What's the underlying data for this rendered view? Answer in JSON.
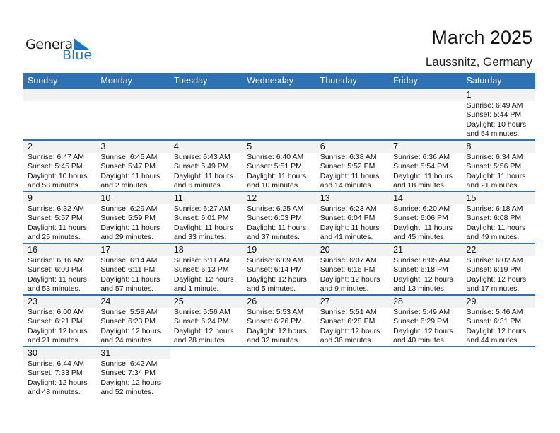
{
  "logo": {
    "general": "General",
    "blue": "Blue"
  },
  "title": "March 2025",
  "location": "Laussnitz, Germany",
  "colors": {
    "header": "#2e72b4",
    "logo_blue": "#1d74bd",
    "day_strip": "#f2f2f2"
  },
  "weekdays": [
    "Sunday",
    "Monday",
    "Tuesday",
    "Wednesday",
    "Thursday",
    "Friday",
    "Saturday"
  ],
  "weeks": [
    [
      null,
      null,
      null,
      null,
      null,
      null,
      {
        "day": "1",
        "sunrise": "Sunrise: 6:49 AM",
        "sunset": "Sunset: 5:44 PM",
        "daylight1": "Daylight: 10 hours",
        "daylight2": "and 54 minutes."
      }
    ],
    [
      {
        "day": "2",
        "sunrise": "Sunrise: 6:47 AM",
        "sunset": "Sunset: 5:45 PM",
        "daylight1": "Daylight: 10 hours",
        "daylight2": "and 58 minutes."
      },
      {
        "day": "3",
        "sunrise": "Sunrise: 6:45 AM",
        "sunset": "Sunset: 5:47 PM",
        "daylight1": "Daylight: 11 hours",
        "daylight2": "and 2 minutes."
      },
      {
        "day": "4",
        "sunrise": "Sunrise: 6:43 AM",
        "sunset": "Sunset: 5:49 PM",
        "daylight1": "Daylight: 11 hours",
        "daylight2": "and 6 minutes."
      },
      {
        "day": "5",
        "sunrise": "Sunrise: 6:40 AM",
        "sunset": "Sunset: 5:51 PM",
        "daylight1": "Daylight: 11 hours",
        "daylight2": "and 10 minutes."
      },
      {
        "day": "6",
        "sunrise": "Sunrise: 6:38 AM",
        "sunset": "Sunset: 5:52 PM",
        "daylight1": "Daylight: 11 hours",
        "daylight2": "and 14 minutes."
      },
      {
        "day": "7",
        "sunrise": "Sunrise: 6:36 AM",
        "sunset": "Sunset: 5:54 PM",
        "daylight1": "Daylight: 11 hours",
        "daylight2": "and 18 minutes."
      },
      {
        "day": "8",
        "sunrise": "Sunrise: 6:34 AM",
        "sunset": "Sunset: 5:56 PM",
        "daylight1": "Daylight: 11 hours",
        "daylight2": "and 21 minutes."
      }
    ],
    [
      {
        "day": "9",
        "sunrise": "Sunrise: 6:32 AM",
        "sunset": "Sunset: 5:57 PM",
        "daylight1": "Daylight: 11 hours",
        "daylight2": "and 25 minutes."
      },
      {
        "day": "10",
        "sunrise": "Sunrise: 6:29 AM",
        "sunset": "Sunset: 5:59 PM",
        "daylight1": "Daylight: 11 hours",
        "daylight2": "and 29 minutes."
      },
      {
        "day": "11",
        "sunrise": "Sunrise: 6:27 AM",
        "sunset": "Sunset: 6:01 PM",
        "daylight1": "Daylight: 11 hours",
        "daylight2": "and 33 minutes."
      },
      {
        "day": "12",
        "sunrise": "Sunrise: 6:25 AM",
        "sunset": "Sunset: 6:03 PM",
        "daylight1": "Daylight: 11 hours",
        "daylight2": "and 37 minutes."
      },
      {
        "day": "13",
        "sunrise": "Sunrise: 6:23 AM",
        "sunset": "Sunset: 6:04 PM",
        "daylight1": "Daylight: 11 hours",
        "daylight2": "and 41 minutes."
      },
      {
        "day": "14",
        "sunrise": "Sunrise: 6:20 AM",
        "sunset": "Sunset: 6:06 PM",
        "daylight1": "Daylight: 11 hours",
        "daylight2": "and 45 minutes."
      },
      {
        "day": "15",
        "sunrise": "Sunrise: 6:18 AM",
        "sunset": "Sunset: 6:08 PM",
        "daylight1": "Daylight: 11 hours",
        "daylight2": "and 49 minutes."
      }
    ],
    [
      {
        "day": "16",
        "sunrise": "Sunrise: 6:16 AM",
        "sunset": "Sunset: 6:09 PM",
        "daylight1": "Daylight: 11 hours",
        "daylight2": "and 53 minutes."
      },
      {
        "day": "17",
        "sunrise": "Sunrise: 6:14 AM",
        "sunset": "Sunset: 6:11 PM",
        "daylight1": "Daylight: 11 hours",
        "daylight2": "and 57 minutes."
      },
      {
        "day": "18",
        "sunrise": "Sunrise: 6:11 AM",
        "sunset": "Sunset: 6:13 PM",
        "daylight1": "Daylight: 12 hours",
        "daylight2": "and 1 minute."
      },
      {
        "day": "19",
        "sunrise": "Sunrise: 6:09 AM",
        "sunset": "Sunset: 6:14 PM",
        "daylight1": "Daylight: 12 hours",
        "daylight2": "and 5 minutes."
      },
      {
        "day": "20",
        "sunrise": "Sunrise: 6:07 AM",
        "sunset": "Sunset: 6:16 PM",
        "daylight1": "Daylight: 12 hours",
        "daylight2": "and 9 minutes."
      },
      {
        "day": "21",
        "sunrise": "Sunrise: 6:05 AM",
        "sunset": "Sunset: 6:18 PM",
        "daylight1": "Daylight: 12 hours",
        "daylight2": "and 13 minutes."
      },
      {
        "day": "22",
        "sunrise": "Sunrise: 6:02 AM",
        "sunset": "Sunset: 6:19 PM",
        "daylight1": "Daylight: 12 hours",
        "daylight2": "and 17 minutes."
      }
    ],
    [
      {
        "day": "23",
        "sunrise": "Sunrise: 6:00 AM",
        "sunset": "Sunset: 6:21 PM",
        "daylight1": "Daylight: 12 hours",
        "daylight2": "and 21 minutes."
      },
      {
        "day": "24",
        "sunrise": "Sunrise: 5:58 AM",
        "sunset": "Sunset: 6:23 PM",
        "daylight1": "Daylight: 12 hours",
        "daylight2": "and 24 minutes."
      },
      {
        "day": "25",
        "sunrise": "Sunrise: 5:56 AM",
        "sunset": "Sunset: 6:24 PM",
        "daylight1": "Daylight: 12 hours",
        "daylight2": "and 28 minutes."
      },
      {
        "day": "26",
        "sunrise": "Sunrise: 5:53 AM",
        "sunset": "Sunset: 6:26 PM",
        "daylight1": "Daylight: 12 hours",
        "daylight2": "and 32 minutes."
      },
      {
        "day": "27",
        "sunrise": "Sunrise: 5:51 AM",
        "sunset": "Sunset: 6:28 PM",
        "daylight1": "Daylight: 12 hours",
        "daylight2": "and 36 minutes."
      },
      {
        "day": "28",
        "sunrise": "Sunrise: 5:49 AM",
        "sunset": "Sunset: 6:29 PM",
        "daylight1": "Daylight: 12 hours",
        "daylight2": "and 40 minutes."
      },
      {
        "day": "29",
        "sunrise": "Sunrise: 5:46 AM",
        "sunset": "Sunset: 6:31 PM",
        "daylight1": "Daylight: 12 hours",
        "daylight2": "and 44 minutes."
      }
    ],
    [
      {
        "day": "30",
        "sunrise": "Sunrise: 6:44 AM",
        "sunset": "Sunset: 7:33 PM",
        "daylight1": "Daylight: 12 hours",
        "daylight2": "and 48 minutes."
      },
      {
        "day": "31",
        "sunrise": "Sunrise: 6:42 AM",
        "sunset": "Sunset: 7:34 PM",
        "daylight1": "Daylight: 12 hours",
        "daylight2": "and 52 minutes."
      },
      null,
      null,
      null,
      null,
      null
    ]
  ]
}
